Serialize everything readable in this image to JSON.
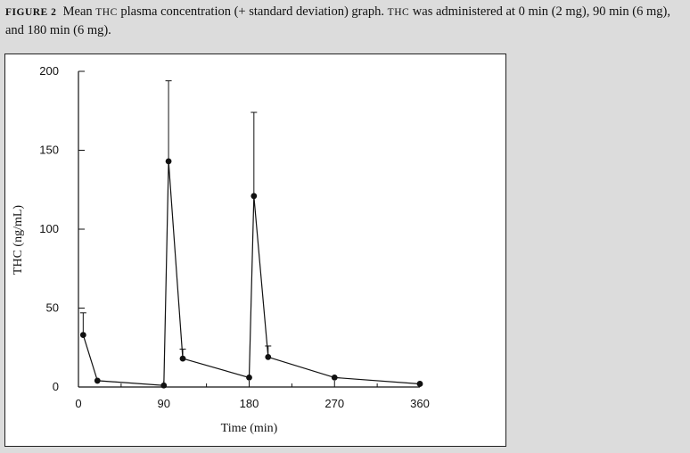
{
  "caption": {
    "label": "FIGURE 2",
    "text_a": "Mean ",
    "thc1": "THC",
    "text_b": " plasma concentration (+ standard deviation) graph. ",
    "thc2": "THC",
    "text_c": " was administered at 0 min (2 mg), 90 min (6 mg), and 180 min (6 mg)."
  },
  "chart_data": {
    "type": "line",
    "title": "",
    "xlabel": "Time (min)",
    "ylabel": "THC (ng/mL)",
    "xlim": [
      0,
      360
    ],
    "ylim": [
      0,
      200
    ],
    "x_ticks": [
      0,
      90,
      180,
      270,
      360
    ],
    "y_ticks": [
      0,
      50,
      100,
      150,
      200
    ],
    "grid": false,
    "series": [
      {
        "x": [
          5,
          20,
          90,
          95,
          110,
          180,
          185,
          200,
          270,
          360
        ],
        "y": [
          33,
          4,
          1,
          143,
          18,
          6,
          121,
          19,
          6,
          2
        ],
        "error_upper": [
          14,
          0,
          0,
          51,
          6,
          0,
          53,
          7,
          0,
          0
        ]
      }
    ]
  }
}
